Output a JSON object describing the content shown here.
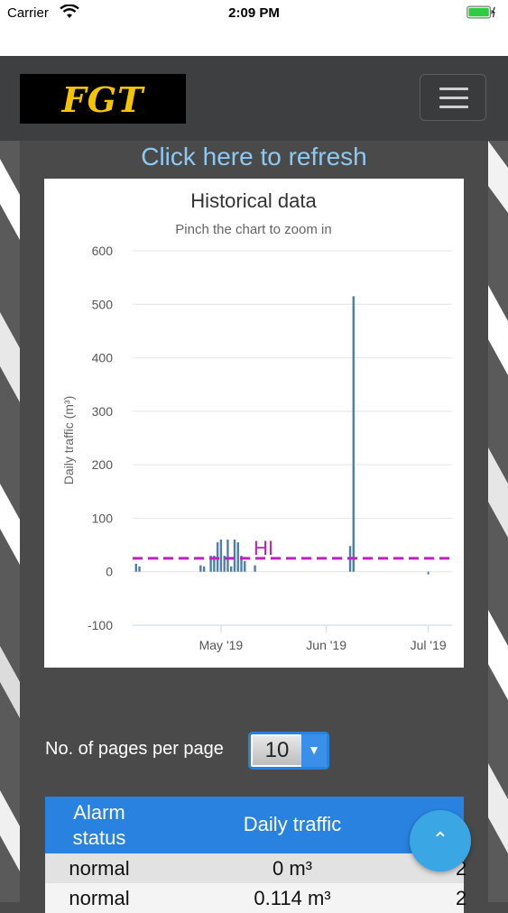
{
  "status_bar": {
    "carrier": "Carrier",
    "time": "2:09 PM"
  },
  "navbar": {
    "logo_text": "FGT"
  },
  "refresh_link": "Click here to refresh",
  "chart": {
    "title": "Historical data",
    "subtitle": "Pinch the chart to zoom in"
  },
  "chart_data": {
    "type": "bar",
    "title": "Historical data",
    "subtitle": "Pinch the chart to zoom in",
    "ylabel": "Daily traffic (m³)",
    "xlabel": "",
    "ylim": [
      -100,
      600
    ],
    "yticks": [
      "600",
      "500",
      "400",
      "300",
      "200",
      "100",
      "0",
      "-100"
    ],
    "xticks": [
      "May '19",
      "Jun '19",
      "Jul '19"
    ],
    "xlim": [
      "2019-04-05",
      "2019-07-08"
    ],
    "threshold": {
      "label": "HI",
      "value": 25,
      "color": "#c021c0"
    },
    "series": [
      {
        "color": "#4f7fa6",
        "points": [
          {
            "date": "2019-04-06",
            "value": 15
          },
          {
            "date": "2019-04-07",
            "value": 10
          },
          {
            "date": "2019-04-25",
            "value": 12
          },
          {
            "date": "2019-04-26",
            "value": 10
          },
          {
            "date": "2019-04-28",
            "value": 30
          },
          {
            "date": "2019-04-29",
            "value": 30
          },
          {
            "date": "2019-04-30",
            "value": 55
          },
          {
            "date": "2019-05-01",
            "value": 60
          },
          {
            "date": "2019-05-02",
            "value": 30
          },
          {
            "date": "2019-05-03",
            "value": 60
          },
          {
            "date": "2019-05-04",
            "value": 10
          },
          {
            "date": "2019-05-05",
            "value": 60
          },
          {
            "date": "2019-05-06",
            "value": 55
          },
          {
            "date": "2019-05-07",
            "value": 30
          },
          {
            "date": "2019-05-08",
            "value": 20
          },
          {
            "date": "2019-05-11",
            "value": 12
          },
          {
            "date": "2019-06-08",
            "value": 48
          },
          {
            "date": "2019-06-09",
            "value": 515
          }
        ]
      }
    ]
  },
  "pagination": {
    "label": "No. of pages per page",
    "selected": "10"
  },
  "table": {
    "headers": {
      "alarm_line1": "Alarm",
      "alarm_line2": "status",
      "traffic": "Daily traffic"
    },
    "rows": [
      {
        "status": "normal",
        "traffic": "0 m³",
        "extra": "2"
      },
      {
        "status": "normal",
        "traffic": "0.114 m³",
        "extra": "2"
      }
    ]
  }
}
